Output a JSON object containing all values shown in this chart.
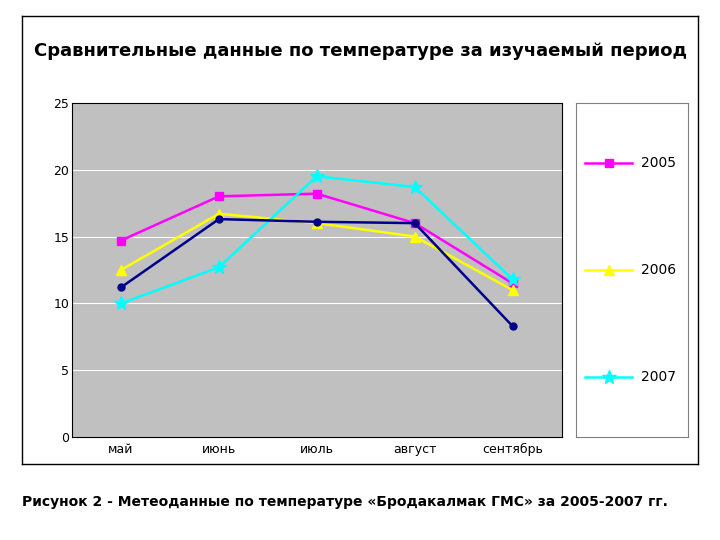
{
  "title": "Сравнительные данные по температуре за изучаемый период",
  "caption": "Рисунок 2 - Метеоданные по температуре «Бродакалмак ГМС» за 2005-2007 гг.",
  "x_labels": [
    "май",
    "июнь",
    "июль",
    "август",
    "сентябрь"
  ],
  "series": [
    {
      "label": "2005",
      "color": "#FF00FF",
      "marker": "s",
      "markersize": 6,
      "values": [
        14.7,
        18.0,
        18.2,
        16.0,
        11.5
      ]
    },
    {
      "label": "2006",
      "color": "#FFFF00",
      "marker": "^",
      "markersize": 7,
      "values": [
        12.5,
        16.7,
        16.0,
        15.0,
        11.0
      ]
    },
    {
      "label": "2007",
      "color": "#00FFFF",
      "marker": "*",
      "markersize": 10,
      "values": [
        10.0,
        12.7,
        19.5,
        18.7,
        11.8
      ]
    },
    {
      "label": null,
      "color": "#00008B",
      "marker": "o",
      "markersize": 5,
      "values": [
        11.2,
        16.3,
        16.1,
        16.0,
        8.3
      ]
    }
  ],
  "ylim": [
    0,
    25
  ],
  "yticks": [
    0,
    5,
    10,
    15,
    20,
    25
  ],
  "plot_bg": "#C0C0C0",
  "fig_bg": "#FFFFFF",
  "outer_box_bg": "#FFFFFF",
  "grid_color": "#FFFFFF",
  "title_fontsize": 13,
  "axis_fontsize": 9,
  "legend_fontsize": 10,
  "caption_fontsize": 10,
  "legend_years": [
    "2005",
    "2006",
    "2007"
  ],
  "legend_colors": [
    "#FF00FF",
    "#FFFF00",
    "#00FFFF"
  ],
  "legend_markers": [
    "s",
    "^",
    "*"
  ],
  "legend_markersizes": [
    6,
    7,
    10
  ]
}
